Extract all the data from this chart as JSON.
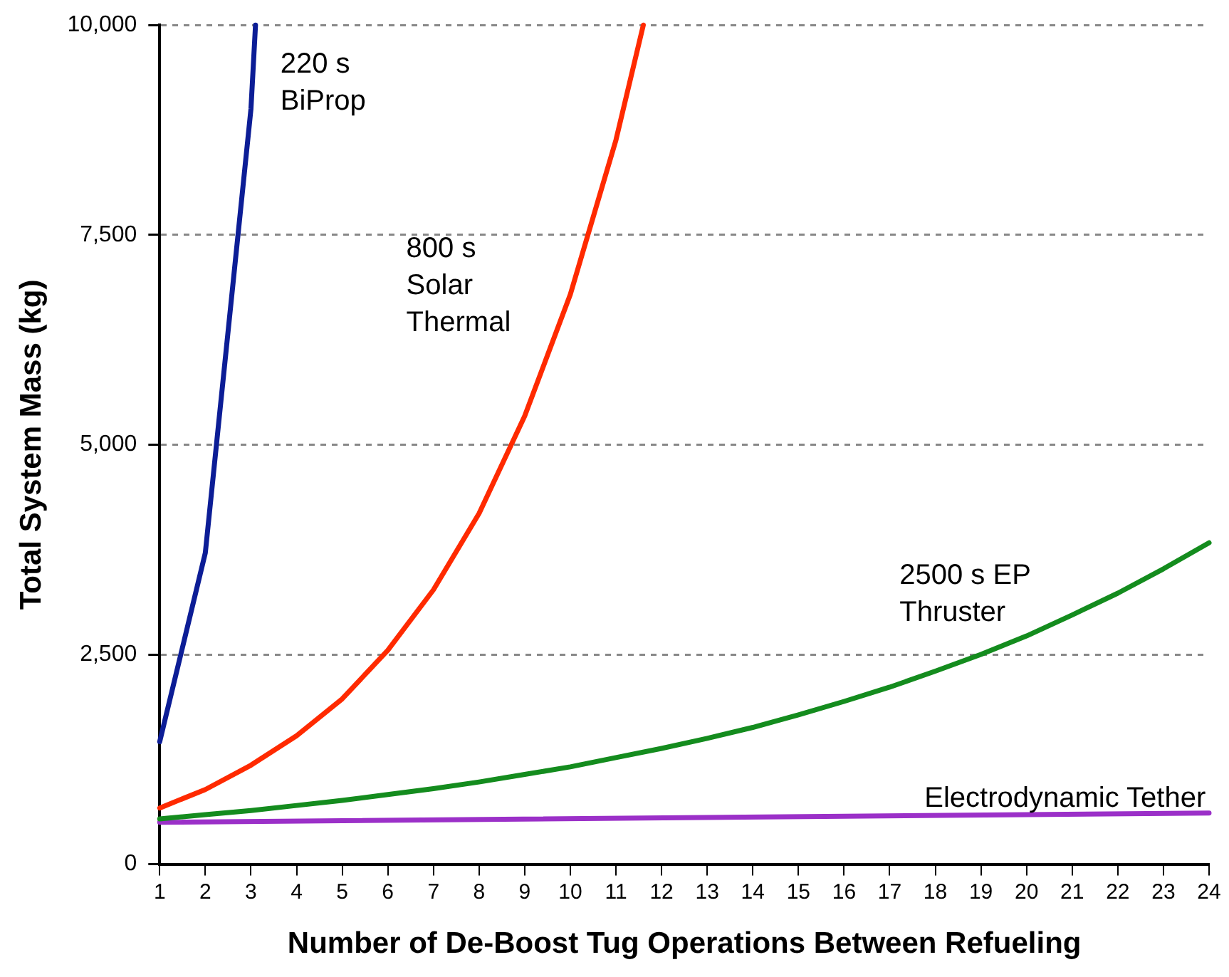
{
  "chart_data": {
    "type": "line",
    "xlabel": "Number of De-Boost Tug Operations Between Refueling",
    "ylabel": "Total System Mass (kg)",
    "xlim": [
      1,
      24
    ],
    "xticks": [
      1,
      2,
      3,
      4,
      5,
      6,
      7,
      8,
      9,
      10,
      11,
      12,
      13,
      14,
      15,
      16,
      17,
      18,
      19,
      20,
      21,
      22,
      23,
      24
    ],
    "ylim": [
      0,
      10000
    ],
    "yticks": [
      {
        "value": 0,
        "label": "0"
      },
      {
        "value": 2500,
        "label": "2,500"
      },
      {
        "value": 5000,
        "label": "5,000"
      },
      {
        "value": 7500,
        "label": "7,500"
      },
      {
        "value": 10000,
        "label": "10,000"
      }
    ],
    "grid": "y",
    "legend": false,
    "marker": "none",
    "line_style": "solid",
    "series": [
      {
        "name": "220 s BiProp",
        "color": "#0c1d96",
        "x": [
          1,
          2,
          3,
          3.1
        ],
        "values": [
          1460,
          3710,
          9000,
          10000
        ]
      },
      {
        "name": "800 s Solar Thermal",
        "color": "#ff2a00",
        "x": [
          1,
          2,
          3,
          4,
          5,
          6,
          7,
          8,
          9,
          10,
          11,
          11.6
        ],
        "values": [
          670,
          890,
          1180,
          1530,
          1970,
          2550,
          3270,
          4180,
          5340,
          6790,
          8630,
          10000
        ]
      },
      {
        "name": "2500 s EP Thruster",
        "color": "#148c1e",
        "x": [
          1,
          2,
          3,
          4,
          5,
          6,
          7,
          8,
          9,
          10,
          11,
          12,
          13,
          14,
          15,
          16,
          17,
          18,
          19,
          20,
          21,
          22,
          23,
          24
        ],
        "values": [
          540,
          590,
          640,
          700,
          760,
          830,
          900,
          980,
          1070,
          1160,
          1270,
          1380,
          1500,
          1630,
          1780,
          1940,
          2110,
          2300,
          2500,
          2720,
          2970,
          3230,
          3520,
          3830
        ]
      },
      {
        "name": "Electrodynamic Tether",
        "color": "#9b30c8",
        "x": [
          1,
          24
        ],
        "values": [
          500,
          610
        ]
      }
    ]
  }
}
